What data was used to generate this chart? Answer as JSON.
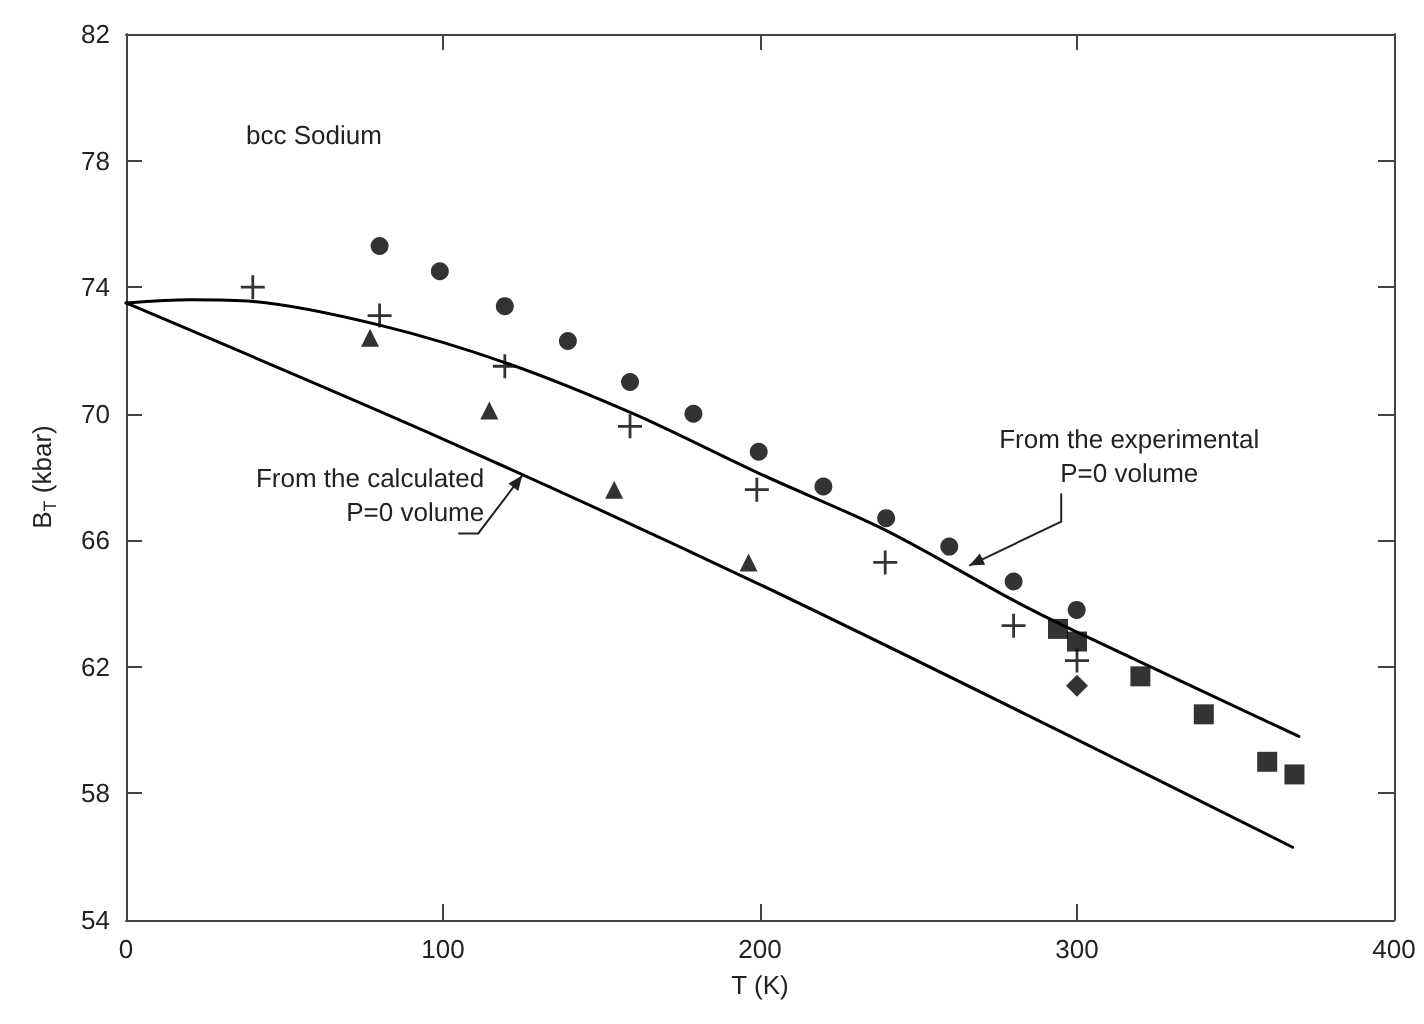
{
  "chart_data": {
    "type": "scatter",
    "xlabel": "T (K)",
    "ylabel": "B$_{T}$ (kbar)",
    "xlim": [
      0,
      400
    ],
    "xticks": [
      0,
      100,
      200,
      300,
      400
    ],
    "ylim": [
      54,
      82
    ],
    "yticks": [
      54,
      58,
      62,
      66,
      70,
      74,
      78,
      82
    ],
    "grid": false,
    "series": [
      {
        "marker": "circle",
        "color": "#000000",
        "x": [
          80,
          99,
          119.5,
          139.4,
          159,
          179,
          199.6,
          220,
          239.8,
          259.7,
          280,
          299.9
        ],
        "values": [
          75.3,
          74.5,
          73.4,
          72.3,
          71.0,
          70.0,
          68.8,
          67.7,
          66.7,
          65.8,
          64.7,
          63.8
        ]
      },
      {
        "marker": "cross",
        "color": "#000000",
        "x": [
          40,
          80,
          119.5,
          159,
          199,
          239.5,
          280,
          300
        ],
        "values": [
          74.0,
          73.1,
          71.5,
          69.6,
          67.6,
          65.3,
          63.3,
          62.2
        ]
      },
      {
        "marker": "triangle",
        "color": "#000000",
        "x": [
          77,
          114.6,
          154,
          196.4
        ],
        "values": [
          72.4,
          70.1,
          67.6,
          65.3
        ]
      },
      {
        "marker": "square",
        "color": "#000000",
        "x": [
          294,
          300,
          320,
          340,
          360,
          368.6
        ],
        "values": [
          63.2,
          62.8,
          61.7,
          60.5,
          59.0,
          58.6
        ]
      },
      {
        "marker": "diamond",
        "color": "#000000",
        "x": [
          300
        ],
        "values": [
          61.4
        ]
      },
      {
        "type": "line",
        "marker": "none",
        "line_style": "solid",
        "color": "#000000",
        "x": [
          0,
          20,
          40,
          80,
          120,
          160,
          200,
          240,
          280,
          300,
          370
        ],
        "values": [
          73.5,
          73.6,
          73.55,
          72.8,
          71.6,
          70.0,
          68.1,
          66.3,
          64.1,
          63.1,
          59.8
        ]
      },
      {
        "type": "line",
        "marker": "none",
        "line_style": "solid",
        "color": "#000000",
        "x": [
          0,
          100,
          200,
          300,
          368
        ],
        "values": [
          73.5,
          69.2,
          64.6,
          59.7,
          56.3
        ]
      }
    ],
    "annotations": [
      "bcc Sodium",
      {
        "text": "From the calculated\nP=0 volume",
        "x": 125,
        "y": 68.05
      },
      {
        "text": "From the experimental\nP=0 volume",
        "x": 266,
        "y": 65.2
      }
    ]
  }
}
